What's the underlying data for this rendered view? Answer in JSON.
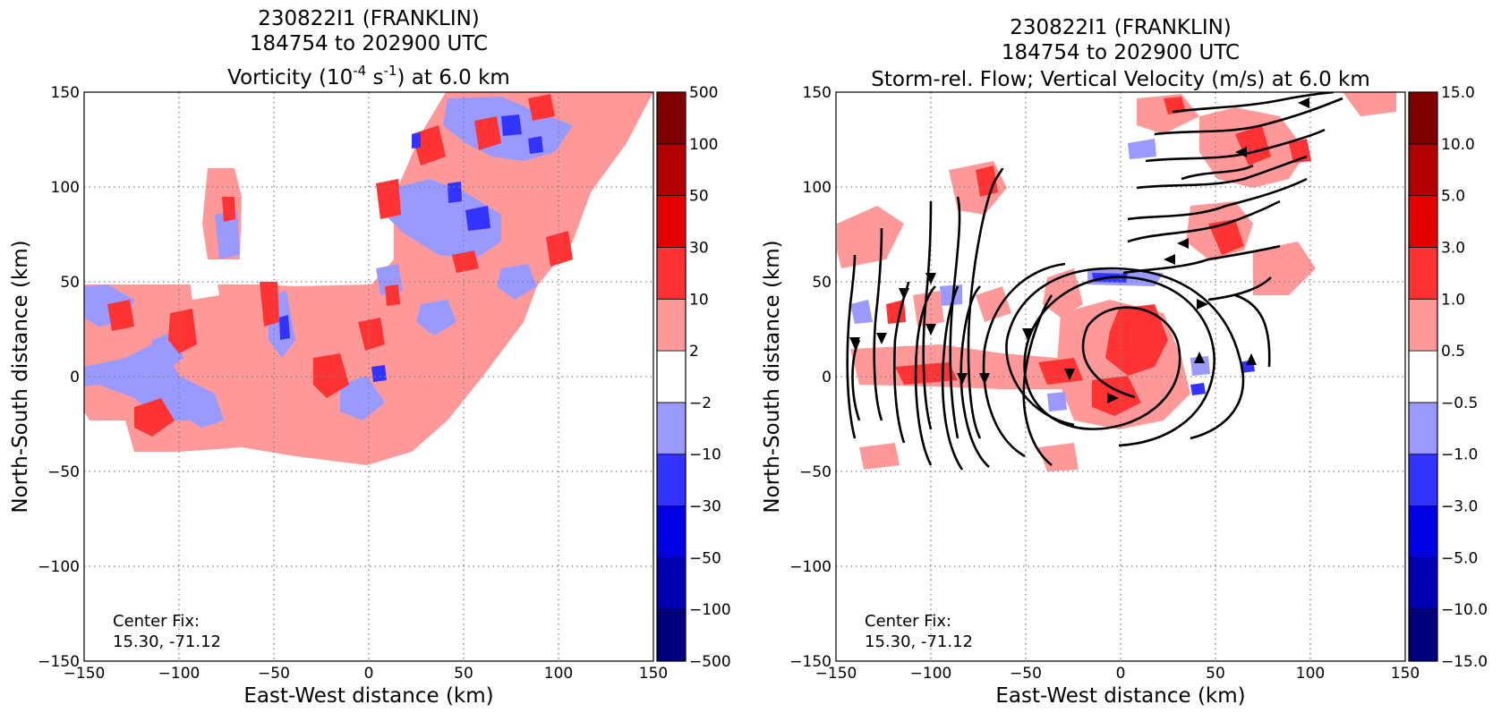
{
  "chart_data": [
    {
      "type": "heatmap",
      "title_lines": [
        "230822I1 (FRANKLIN)",
        "184754 to 202900 UTC"
      ],
      "title_line3": {
        "prefix": "Vorticity (10",
        "exp1": "-4",
        "mid": " s",
        "exp2": "-1",
        "suffix": ") at 6.0 km"
      },
      "xlabel": "East-West distance (km)",
      "ylabel": "North-South distance (km)",
      "xlim": [
        -150,
        150
      ],
      "ylim": [
        -150,
        150
      ],
      "xticks": [
        "−150",
        "−100",
        "−50",
        "0",
        "50",
        "100",
        "150"
      ],
      "yticks": [
        "−150",
        "−100",
        "−50",
        "0",
        "50",
        "100",
        "150"
      ],
      "grid": true,
      "colorbar": {
        "levels": [
          "−500",
          "−100",
          "−50",
          "−30",
          "−10",
          "−2",
          "2",
          "10",
          "30",
          "50",
          "100",
          "500"
        ],
        "colors": [
          "#00007f",
          "#0000b2",
          "#0000e5",
          "#3333ff",
          "#9999ff",
          "#ffffff",
          "#ff9999",
          "#ff3333",
          "#e50000",
          "#b20000",
          "#7f0000"
        ]
      },
      "annotation": [
        "Center Fix:",
        "15.30, -71.12"
      ]
    },
    {
      "type": "heatmap",
      "title_lines": [
        "230822I1 (FRANKLIN)",
        "184754 to 202900 UTC",
        "Storm-rel. Flow; Vertical Velocity (m/s) at 6.0 km"
      ],
      "xlabel": "East-West distance (km)",
      "ylabel": "North-South distance (km)",
      "xlim": [
        -150,
        150
      ],
      "ylim": [
        -150,
        150
      ],
      "xticks": [
        "−150",
        "−100",
        "−50",
        "0",
        "50",
        "100",
        "150"
      ],
      "yticks": [
        "−150",
        "−100",
        "−50",
        "0",
        "50",
        "100",
        "150"
      ],
      "grid": true,
      "colorbar": {
        "levels": [
          "−15.0",
          "−10.0",
          "−5.0",
          "−3.0",
          "−1.0",
          "−0.5",
          "0.5",
          "1.0",
          "3.0",
          "5.0",
          "10.0",
          "15.0"
        ],
        "colors": [
          "#00007f",
          "#0000b2",
          "#0000e5",
          "#3333ff",
          "#9999ff",
          "#ffffff",
          "#ff9999",
          "#ff3333",
          "#e50000",
          "#b20000",
          "#7f0000"
        ]
      },
      "annotation": [
        "Center Fix:",
        "15.30, -71.12"
      ],
      "streamlines": "storm-relative cyclonic flow centered near (15, 10) km with southward flow west of center"
    }
  ]
}
